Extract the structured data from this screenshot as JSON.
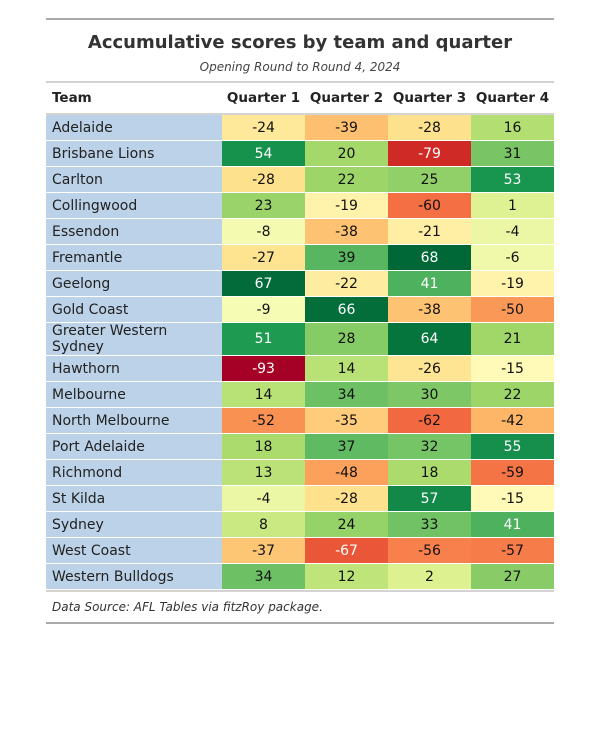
{
  "title": "Accumulative scores by team and quarter",
  "subtitle": "Opening Round to Round 4, 2024",
  "source": "Data Source: AFL Tables via fitzRoy package.",
  "colors": {
    "team_cell": "#bcd2e8",
    "scale_low": "#a50026",
    "scale_mid": "#ffffbf",
    "scale_high": "#006837"
  },
  "chart_data": {
    "type": "table",
    "columns": [
      "Team",
      "Quarter 1",
      "Quarter 2",
      "Quarter 3",
      "Quarter 4"
    ],
    "rows": [
      {
        "team": "Adelaide",
        "values": [
          -24,
          -39,
          -28,
          16
        ]
      },
      {
        "team": "Brisbane Lions",
        "values": [
          54,
          20,
          -79,
          31
        ]
      },
      {
        "team": "Carlton",
        "values": [
          -28,
          22,
          25,
          53
        ]
      },
      {
        "team": "Collingwood",
        "values": [
          23,
          -19,
          -60,
          1
        ]
      },
      {
        "team": "Essendon",
        "values": [
          -8,
          -38,
          -21,
          -4
        ]
      },
      {
        "team": "Fremantle",
        "values": [
          -27,
          39,
          68,
          -6
        ]
      },
      {
        "team": "Geelong",
        "values": [
          67,
          -22,
          41,
          -19
        ]
      },
      {
        "team": "Gold Coast",
        "values": [
          -9,
          66,
          -38,
          -50
        ]
      },
      {
        "team": "Greater Western Sydney",
        "values": [
          51,
          28,
          64,
          21
        ]
      },
      {
        "team": "Hawthorn",
        "values": [
          -93,
          14,
          -26,
          -15
        ]
      },
      {
        "team": "Melbourne",
        "values": [
          14,
          34,
          30,
          22
        ]
      },
      {
        "team": "North Melbourne",
        "values": [
          -52,
          -35,
          -62,
          -42
        ]
      },
      {
        "team": "Port Adelaide",
        "values": [
          18,
          37,
          32,
          55
        ]
      },
      {
        "team": "Richmond",
        "values": [
          13,
          -48,
          18,
          -59
        ]
      },
      {
        "team": "St Kilda",
        "values": [
          -4,
          -28,
          57,
          -15
        ]
      },
      {
        "team": "Sydney",
        "values": [
          8,
          24,
          33,
          41
        ]
      },
      {
        "team": "West Coast",
        "values": [
          -37,
          -67,
          -56,
          -57
        ]
      },
      {
        "team": "Western Bulldogs",
        "values": [
          34,
          12,
          2,
          27
        ]
      }
    ]
  }
}
